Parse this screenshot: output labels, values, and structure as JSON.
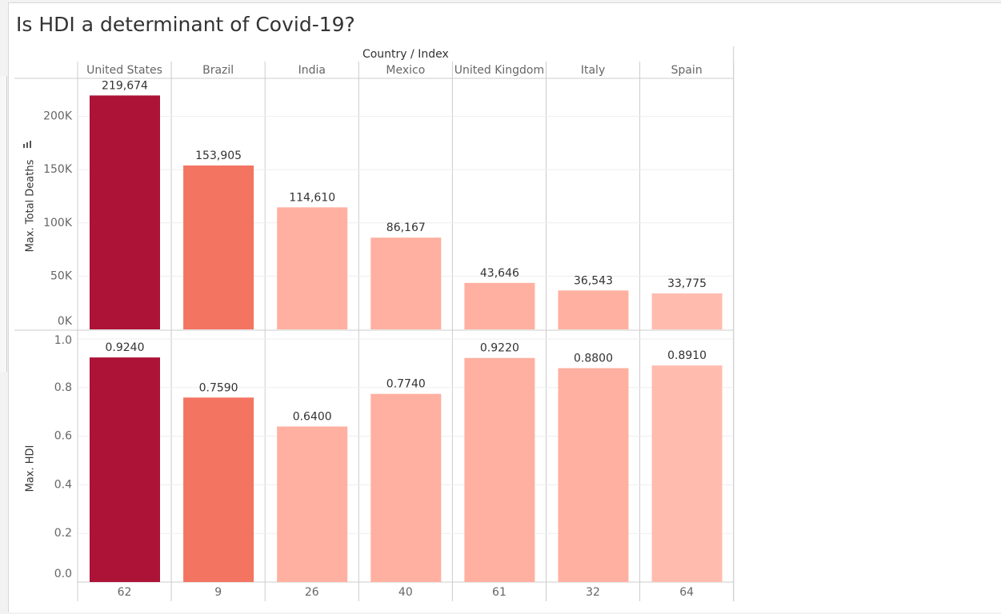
{
  "title": "Is HDI a determinant of Covid-19?",
  "sort_indicator_icon": "sort-descending-icon",
  "colors": {
    "bar_dark": "#ad1237",
    "bar_mid": "#f47462",
    "bar_light": "#ffb0a0",
    "bar_lighter": "#ffbcae",
    "grid": "#eeeeee",
    "divider": "#cccccc",
    "text": "#333333",
    "tick_text": "#666666"
  },
  "chart_data": {
    "type": "bar",
    "column_header": "Country / Index",
    "categories": [
      "United States",
      "Brazil",
      "India",
      "Mexico",
      "United Kingdom",
      "Italy",
      "Spain"
    ],
    "index_values": [
      "62",
      "9",
      "26",
      "40",
      "61",
      "32",
      "64"
    ],
    "color_level": [
      "dark",
      "mid",
      "light",
      "light",
      "light",
      "light",
      "lighter"
    ],
    "panels": [
      {
        "name": "deaths",
        "ylabel": "Max. Total Deaths",
        "ylim": [
          0,
          235000
        ],
        "ticks": [
          0,
          50000,
          100000,
          150000,
          200000
        ],
        "tick_labels": [
          "0K",
          "50K",
          "100K",
          "150K",
          "200K"
        ],
        "values": [
          219674,
          153905,
          114610,
          86167,
          43646,
          36543,
          33775
        ],
        "value_labels": [
          "219,674",
          "153,905",
          "114,610",
          "86,167",
          "43,646",
          "36,543",
          "33,775"
        ]
      },
      {
        "name": "hdi",
        "ylabel": "Max. HDI",
        "ylim": [
          0,
          1.0
        ],
        "ticks": [
          0,
          0.2,
          0.4,
          0.6,
          0.8,
          1.0
        ],
        "tick_labels": [
          "0.0",
          "0.2",
          "0.4",
          "0.6",
          "0.8",
          "1.0"
        ],
        "values": [
          0.924,
          0.759,
          0.64,
          0.774,
          0.922,
          0.88,
          0.891
        ],
        "value_labels": [
          "0.9240",
          "0.7590",
          "0.6400",
          "0.7740",
          "0.9220",
          "0.8800",
          "0.8910"
        ]
      }
    ]
  }
}
